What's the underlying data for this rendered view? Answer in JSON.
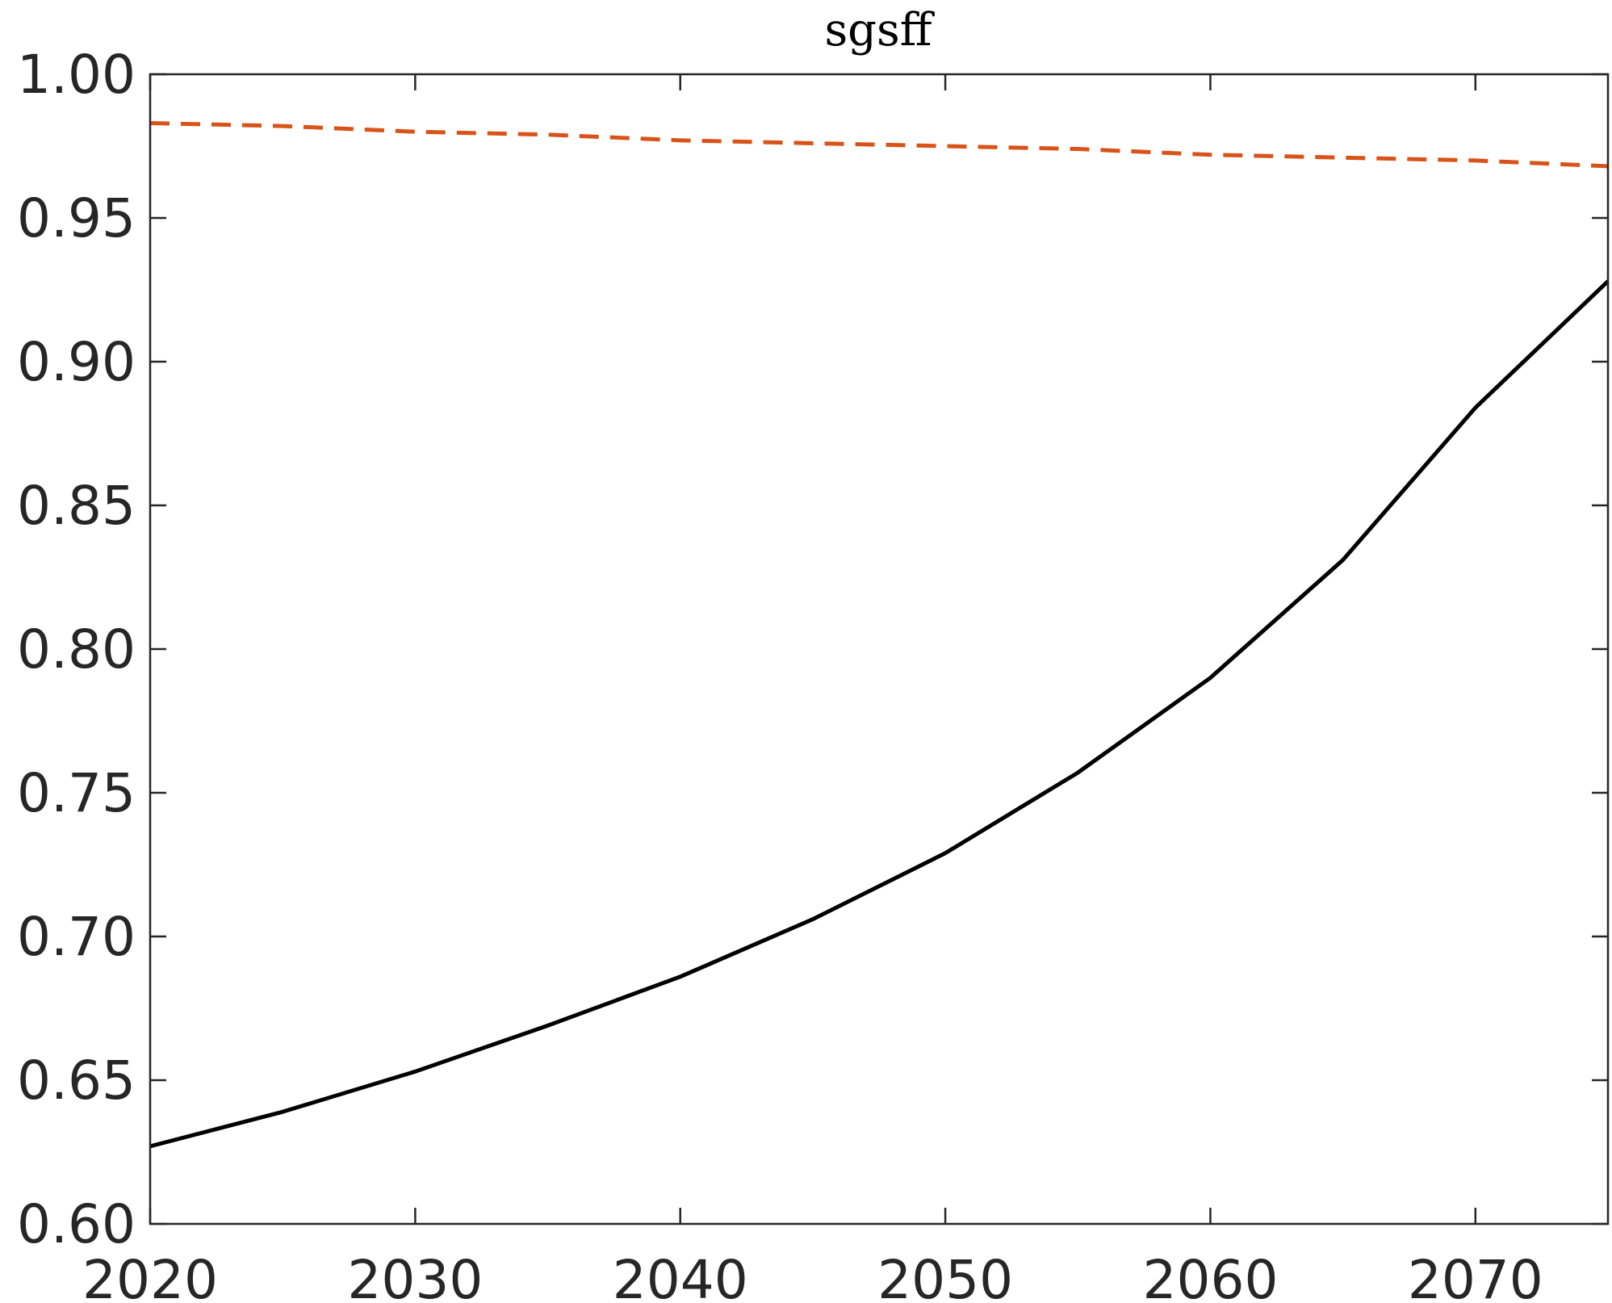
{
  "chart_data": {
    "type": "line",
    "title": "sgsff",
    "xlabel": "",
    "ylabel": "",
    "xlim": [
      2020,
      2075
    ],
    "ylim": [
      0.6,
      1.0
    ],
    "xticks": [
      2020,
      2030,
      2040,
      2050,
      2060,
      2070
    ],
    "xtick_labels": [
      "2020",
      "2030",
      "2040",
      "2050",
      "2060",
      "2070"
    ],
    "yticks": [
      0.6,
      0.65,
      0.7,
      0.75,
      0.8,
      0.85,
      0.9,
      0.95,
      1.0
    ],
    "ytick_labels": [
      "0.60",
      "0.65",
      "0.70",
      "0.75",
      "0.80",
      "0.85",
      "0.90",
      "0.95",
      "1.00"
    ],
    "grid": false,
    "legend": "none",
    "x": [
      2020,
      2025,
      2030,
      2035,
      2040,
      2045,
      2050,
      2055,
      2060,
      2065,
      2070,
      2075
    ],
    "series": [
      {
        "values": [
          0.627,
          0.639,
          0.653,
          0.669,
          0.686,
          0.706,
          0.729,
          0.757,
          0.79,
          0.831,
          0.884,
          0.928
        ],
        "color": "#000000",
        "style": "solid"
      },
      {
        "values": [
          0.983,
          0.982,
          0.98,
          0.979,
          0.977,
          0.976,
          0.975,
          0.974,
          0.972,
          0.971,
          0.97,
          0.968
        ],
        "color": "#D95319",
        "style": "dashed"
      }
    ]
  }
}
